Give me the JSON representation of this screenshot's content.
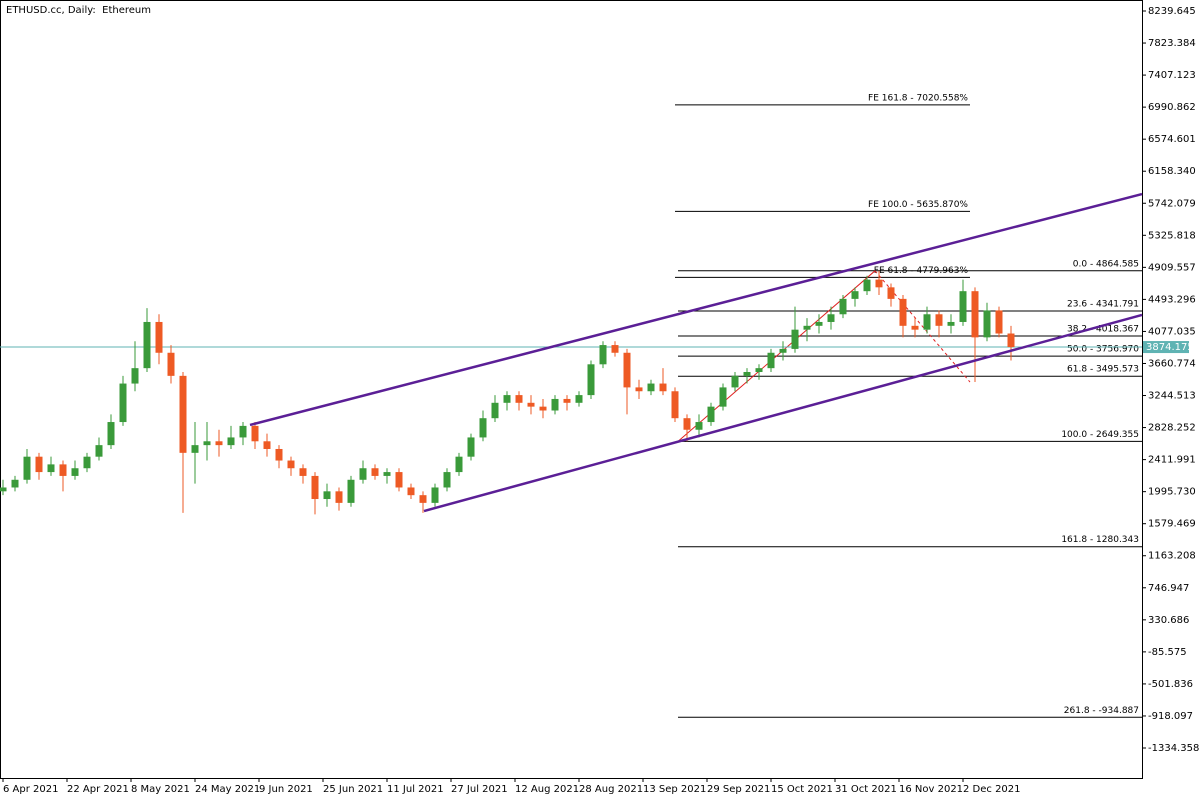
{
  "chart_data": {
    "type": "candlestick",
    "title": "ETHUSD.cc, Daily:  Ethereum",
    "up_color": "#3a9a3a",
    "down_color": "#ee5a24",
    "xlim": [
      -0.75,
      284.75
    ],
    "xticks": [
      {
        "value": 0,
        "label": "6 Apr 2021"
      },
      {
        "value": 16,
        "label": "22 Apr 2021"
      },
      {
        "value": 32,
        "label": "8 May 2021"
      },
      {
        "value": 48,
        "label": "24 May 2021"
      },
      {
        "value": 64,
        "label": "9 Jun 2021"
      },
      {
        "value": 80,
        "label": "25 Jun 2021"
      },
      {
        "value": 96,
        "label": "11 Jul 2021"
      },
      {
        "value": 112,
        "label": "27 Jul 2021"
      },
      {
        "value": 128,
        "label": "12 Aug 2021"
      },
      {
        "value": 144,
        "label": "28 Aug 2021"
      },
      {
        "value": 160,
        "label": "13 Sep 2021"
      },
      {
        "value": 176,
        "label": "29 Sep 2021"
      },
      {
        "value": 192,
        "label": "15 Oct 2021"
      },
      {
        "value": 208,
        "label": "31 Oct 2021"
      },
      {
        "value": 224,
        "label": "16 Nov 2021"
      },
      {
        "value": 240,
        "label": "2 Dec 2021"
      }
    ],
    "ylim": [
      -1724,
      8382.5
    ],
    "yticks": [
      8239.645,
      7823.384,
      7407.123,
      6990.862,
      6574.601,
      {
        "value": 6158.34,
        "label": "6158.340"
      },
      5742.079,
      5325.818,
      4909.557,
      4493.296,
      4077.035,
      3660.774,
      3244.513,
      2828.252,
      2411.991,
      {
        "value": 1995.73,
        "label": "1995.730"
      },
      1579.469,
      1163.208,
      746.947,
      330.686,
      -85.575,
      -501.836,
      -918.097,
      -1334.358
    ],
    "last_price": 3874.175,
    "last_price_color": "#5fb3b3",
    "candles": {
      "x": [
        0,
        3,
        6,
        9,
        12,
        15,
        18,
        21,
        24,
        27,
        30,
        33,
        36,
        39,
        42,
        45,
        48,
        51,
        54,
        57,
        60,
        63,
        66,
        69,
        72,
        75,
        78,
        81,
        84,
        87,
        90,
        93,
        96,
        99,
        102,
        105,
        108,
        111,
        114,
        117,
        120,
        123,
        126,
        129,
        132,
        135,
        138,
        141,
        144,
        147,
        150,
        153,
        156,
        159,
        162,
        165,
        168,
        171,
        174,
        177,
        180,
        183,
        186,
        189,
        192,
        195,
        198,
        201,
        204,
        207,
        210,
        213,
        216,
        219,
        222,
        225,
        228,
        231,
        234,
        237,
        240,
        243,
        246,
        249,
        252
      ],
      "ohlc": [
        [
          2000,
          2150,
          1950,
          2050
        ],
        [
          2050,
          2200,
          2000,
          2150
        ],
        [
          2150,
          2550,
          2100,
          2450
        ],
        [
          2450,
          2500,
          2150,
          2250
        ],
        [
          2250,
          2450,
          2200,
          2350
        ],
        [
          2350,
          2400,
          2000,
          2200
        ],
        [
          2200,
          2400,
          2150,
          2300
        ],
        [
          2300,
          2500,
          2250,
          2450
        ],
        [
          2450,
          2700,
          2400,
          2600
        ],
        [
          2600,
          3000,
          2550,
          2900
        ],
        [
          2900,
          3500,
          2850,
          3400
        ],
        [
          3400,
          3950,
          3300,
          3600
        ],
        [
          3600,
          4380,
          3550,
          4200
        ],
        [
          4200,
          4300,
          3650,
          3800
        ],
        [
          3800,
          3900,
          3400,
          3500
        ],
        [
          3500,
          3550,
          1720,
          2500
        ],
        [
          2500,
          2900,
          2100,
          2600
        ],
        [
          2600,
          2900,
          2400,
          2650
        ],
        [
          2650,
          2800,
          2450,
          2600
        ],
        [
          2600,
          2850,
          2550,
          2700
        ],
        [
          2700,
          2900,
          2600,
          2850
        ],
        [
          2850,
          2900,
          2550,
          2650
        ],
        [
          2650,
          2750,
          2450,
          2550
        ],
        [
          2550,
          2600,
          2300,
          2400
        ],
        [
          2400,
          2450,
          2200,
          2300
        ],
        [
          2300,
          2350,
          2100,
          2200
        ],
        [
          2200,
          2250,
          1700,
          1900
        ],
        [
          1900,
          2100,
          1800,
          2000
        ],
        [
          2000,
          2050,
          1750,
          1850
        ],
        [
          1850,
          2200,
          1800,
          2150
        ],
        [
          2150,
          2400,
          2100,
          2300
        ],
        [
          2300,
          2350,
          2150,
          2200
        ],
        [
          2200,
          2300,
          2100,
          2250
        ],
        [
          2250,
          2300,
          2000,
          2050
        ],
        [
          2050,
          2100,
          1900,
          1950
        ],
        [
          1950,
          2000,
          1720,
          1850
        ],
        [
          1850,
          2100,
          1800,
          2050
        ],
        [
          2050,
          2300,
          2000,
          2250
        ],
        [
          2250,
          2500,
          2200,
          2450
        ],
        [
          2450,
          2750,
          2400,
          2700
        ],
        [
          2700,
          3050,
          2650,
          2950
        ],
        [
          2950,
          3250,
          2900,
          3150
        ],
        [
          3150,
          3300,
          3050,
          3250
        ],
        [
          3250,
          3300,
          3050,
          3150
        ],
        [
          3150,
          3250,
          3000,
          3100
        ],
        [
          3100,
          3200,
          2950,
          3050
        ],
        [
          3050,
          3250,
          3000,
          3200
        ],
        [
          3200,
          3250,
          3050,
          3150
        ],
        [
          3150,
          3300,
          3100,
          3250
        ],
        [
          3250,
          3700,
          3200,
          3650
        ],
        [
          3650,
          3950,
          3600,
          3900
        ],
        [
          3900,
          3950,
          3750,
          3800
        ],
        [
          3800,
          3850,
          3000,
          3350
        ],
        [
          3350,
          3450,
          3200,
          3300
        ],
        [
          3300,
          3450,
          3250,
          3400
        ],
        [
          3400,
          3600,
          3250,
          3300
        ],
        [
          3300,
          3350,
          2900,
          2950
        ],
        [
          2950,
          3000,
          2650,
          2800
        ],
        [
          2800,
          3000,
          2700,
          2900
        ],
        [
          2900,
          3150,
          2850,
          3100
        ],
        [
          3100,
          3400,
          3050,
          3350
        ],
        [
          3350,
          3550,
          3300,
          3500
        ],
        [
          3500,
          3600,
          3400,
          3550
        ],
        [
          3550,
          3650,
          3450,
          3600
        ],
        [
          3600,
          3850,
          3550,
          3800
        ],
        [
          3800,
          3950,
          3700,
          3850
        ],
        [
          3850,
          4400,
          3800,
          4100
        ],
        [
          4100,
          4250,
          3950,
          4150
        ],
        [
          4150,
          4300,
          4050,
          4200
        ],
        [
          4200,
          4400,
          4100,
          4300
        ],
        [
          4300,
          4550,
          4250,
          4500
        ],
        [
          4500,
          4650,
          4400,
          4600
        ],
        [
          4600,
          4800,
          4550,
          4750
        ],
        [
          4750,
          4864,
          4550,
          4650
        ],
        [
          4650,
          4700,
          4400,
          4500
        ],
        [
          4500,
          4550,
          4000,
          4150
        ],
        [
          4150,
          4250,
          4000,
          4100
        ],
        [
          4100,
          4400,
          4050,
          4300
        ],
        [
          4300,
          4350,
          4000,
          4150
        ],
        [
          4150,
          4300,
          4050,
          4200
        ],
        [
          4200,
          4750,
          4150,
          4600
        ],
        [
          4600,
          4650,
          3420,
          4000
        ],
        [
          4000,
          4450,
          3950,
          4350
        ],
        [
          4350,
          4400,
          4000,
          4050
        ],
        [
          4050,
          4150,
          3700,
          3874.175
        ]
      ]
    },
    "channel": {
      "color": "#5b1f96",
      "lines": [
        {
          "x": [
            61.75,
            284.75
          ],
          "y": [
            2862,
            5862
          ]
        },
        {
          "x": [
            105.25,
            284.75
          ],
          "y": [
            1744,
            4291
          ]
        }
      ]
    },
    "fib_expansion": {
      "color": "#e02020",
      "points_x": [
        168.75,
        218,
        241.75
      ],
      "points_y": [
        2649.355,
        4864.585,
        3420
      ],
      "x_range": [
        168,
        241.75
      ],
      "levels": [
        {
          "value": 7020.558,
          "label": "FE 161.8 - 7020.558%"
        },
        {
          "value": 5635.87,
          "label": "FE 100.0 - 5635.870%"
        },
        {
          "value": 4779.963,
          "label": "FE 61.8 - 4779.963%"
        }
      ]
    },
    "fib_retracement": {
      "x_start": 168.75,
      "levels": [
        {
          "value": 4864.585,
          "label": "0.0 - 4864.585"
        },
        {
          "value": 4341.791,
          "label": "23.6 - 4341.791"
        },
        {
          "value": 4018.367,
          "label": "38.2 - 4018.367"
        },
        {
          "value": 3756.97,
          "label": "50.0 - 3756.970"
        },
        {
          "value": 3495.573,
          "label": "61.8 - 3495.573"
        },
        {
          "value": 2649.355,
          "label": "100.0 - 2649.355"
        },
        {
          "value": 1280.343,
          "label": "161.8 - 1280.343"
        },
        {
          "value": -934.887,
          "label": "261.8 - -934.887"
        }
      ]
    }
  }
}
